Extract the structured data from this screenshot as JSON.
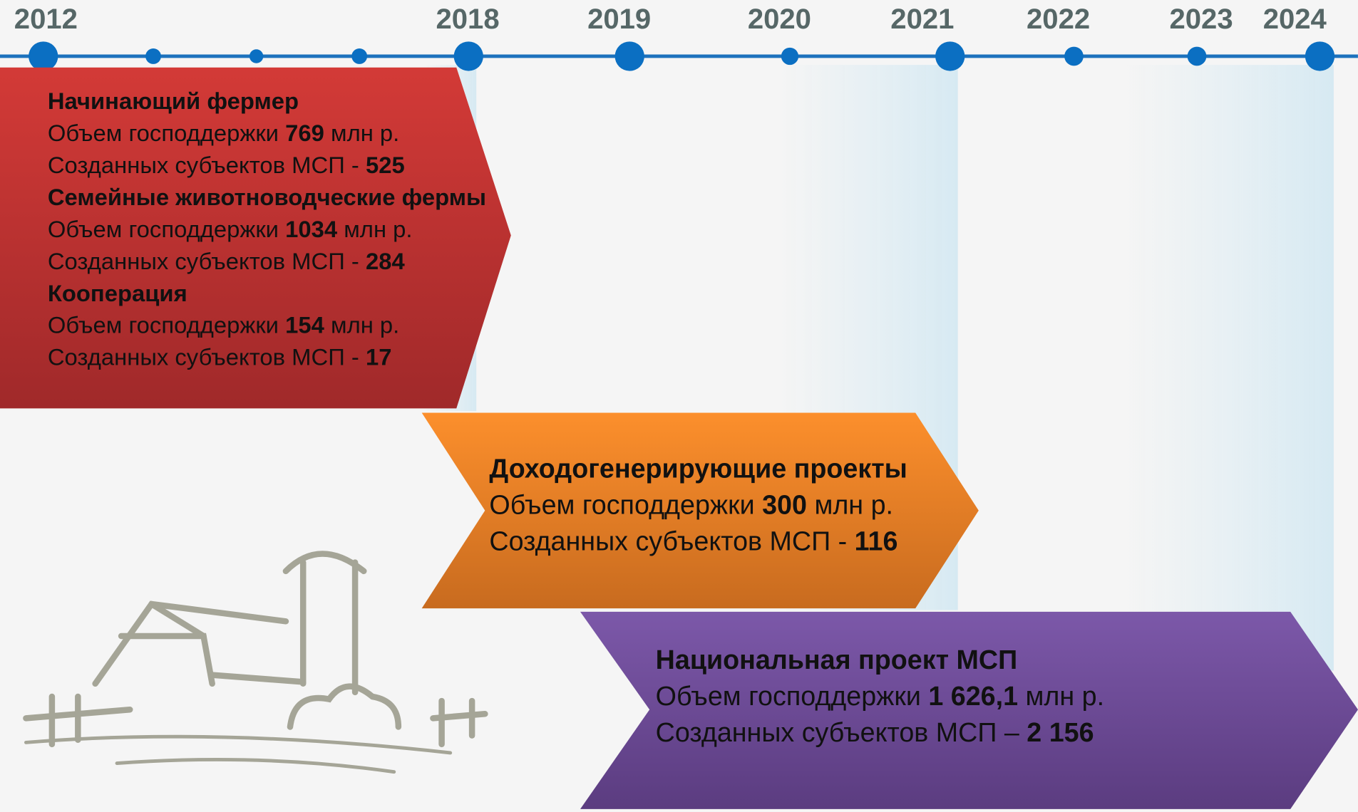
{
  "timeline": {
    "years": [
      "2012",
      "2018",
      "2019",
      "2020",
      "2021",
      "2022",
      "2023",
      "2024"
    ]
  },
  "blocks": [
    {
      "programs": [
        {
          "title": "Начинающий фермер",
          "support": {
            "label": "Объем господдержки",
            "value": "769",
            "unit": "млн р."
          },
          "created": {
            "label": "Созданных субъектов МСП -",
            "value": "525"
          }
        },
        {
          "title": "Семейные животноводческие фермы",
          "support": {
            "label": "Объем господдержки",
            "value": "1034",
            "unit": "млн р."
          },
          "created": {
            "label": "Созданных субъектов МСП -",
            "value": "284"
          }
        },
        {
          "title": "Кооперация",
          "support": {
            "label": "Объем господдержки",
            "value": "154",
            "unit": "млн р."
          },
          "created": {
            "label": "Созданных субъектов МСП -",
            "value": "17"
          }
        }
      ]
    },
    {
      "programs": [
        {
          "title": "Доходогенерирующие проекты",
          "support": {
            "label": "Объем господдержки",
            "value": "300",
            "unit": "млн р."
          },
          "created": {
            "label": "Созданных субъектов МСП -",
            "value": "116"
          }
        }
      ]
    },
    {
      "programs": [
        {
          "title": "Национальная проект МСП",
          "support": {
            "label": "Объем господдержки",
            "value": "1 626,1",
            "unit": "млн р."
          },
          "created": {
            "label": "Созданных субъектов МСП –",
            "value": "2 156"
          }
        }
      ]
    }
  ]
}
